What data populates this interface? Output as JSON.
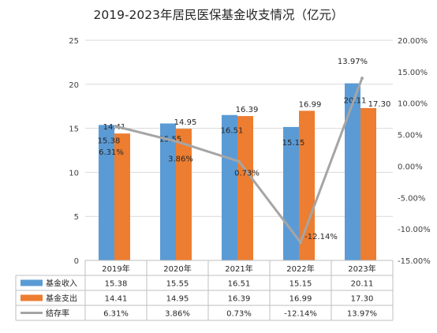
{
  "chart_data": {
    "type": "bar",
    "title": "2019-2023年居民医保基金收支情况（亿元）",
    "categories": [
      "2019年",
      "2020年",
      "2021年",
      "2022年",
      "2023年"
    ],
    "ylim": [
      0,
      25
    ],
    "y_ticks": [
      "0",
      "5",
      "10",
      "15",
      "20",
      "25"
    ],
    "y2lim": [
      -15,
      20
    ],
    "y2_ticks": [
      "-15.00%",
      "-10.00%",
      "-5.00%",
      "0.00%",
      "5.00%",
      "10.00%",
      "15.00%",
      "20.00%"
    ],
    "grid": true,
    "legend_placement": "data table (bottom)",
    "series": [
      {
        "name": "基金收入",
        "kind": "bar",
        "axis": "left",
        "color": "#5B9BD5",
        "values": [
          15.38,
          15.55,
          16.51,
          15.15,
          20.11
        ],
        "labels": [
          "15.38",
          "15.55",
          "16.51",
          "15.15",
          "20.11"
        ]
      },
      {
        "name": "基金支出",
        "kind": "bar",
        "axis": "left",
        "color": "#ED7D31",
        "values": [
          14.41,
          14.95,
          16.39,
          16.99,
          17.3
        ],
        "labels": [
          "14.41",
          "14.95",
          "16.39",
          "16.99",
          "17.30"
        ]
      },
      {
        "name": "结存率",
        "kind": "line",
        "axis": "right",
        "color": "#A5A5A5",
        "values": [
          6.31,
          3.86,
          0.73,
          -12.14,
          13.97
        ],
        "labels": [
          "6.31%",
          "3.86%",
          "0.73%",
          "-12.14%",
          "13.97%"
        ]
      }
    ]
  }
}
